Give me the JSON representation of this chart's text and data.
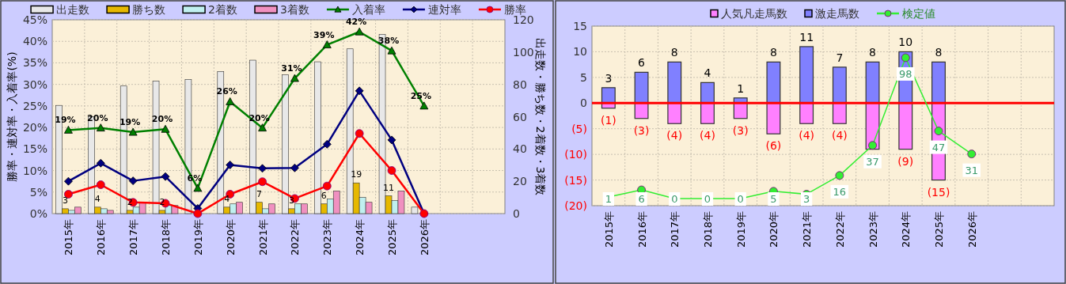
{
  "chart_data": [
    {
      "type": "bar",
      "categories": [
        "2015年",
        "2016年",
        "2017年",
        "2018年",
        "2019年",
        "2020年",
        "2021年",
        "2022年",
        "2023年",
        "2024年",
        "2025年",
        "2026年",
        null,
        null
      ],
      "ylabel": "勝率・連対率・入着率(%)",
      "y2label": "出走数・勝ち数・2着数・3着数",
      "ylim": [
        0,
        45
      ],
      "yticks": [
        {
          "value": 0,
          "label": "0%"
        },
        {
          "value": 5,
          "label": "5%"
        },
        {
          "value": 10,
          "label": "10%"
        },
        {
          "value": 15,
          "label": "15%"
        },
        {
          "value": 20,
          "label": "20%"
        },
        {
          "value": 25,
          "label": "25%"
        },
        {
          "value": 30,
          "label": "30%"
        },
        {
          "value": 35,
          "label": "35%"
        },
        {
          "value": 40,
          "label": "40%"
        },
        {
          "value": 45,
          "label": "45%"
        }
      ],
      "y2lim": [
        0,
        120
      ],
      "y2ticks": [
        0,
        20,
        40,
        60,
        80,
        100,
        120
      ],
      "grid": true,
      "legend": "top",
      "series": [
        {
          "name": "出走数",
          "color": "#e8e8e8",
          "axis": "y2",
          "values": [
            67,
            60,
            79,
            82,
            83,
            88,
            95,
            86,
            94,
            102,
            111,
            4,
            null,
            null
          ]
        },
        {
          "name": "勝ち数",
          "color": "#e6b800",
          "axis": "y2",
          "values": [
            3,
            4,
            2,
            2,
            0,
            4,
            7,
            3,
            6,
            19,
            11,
            0,
            null,
            null
          ],
          "value_labels": [
            "3",
            "4",
            "2",
            "2",
            null,
            "4",
            "7",
            "3",
            "6",
            "19",
            "11",
            null,
            null,
            null
          ]
        },
        {
          "name": "2着数",
          "color": "#c0f0f0",
          "axis": "y2",
          "values": [
            2,
            3,
            4,
            5,
            0,
            6,
            3,
            6,
            9,
            10,
            8,
            0,
            null,
            null
          ]
        },
        {
          "name": "3着数",
          "color": "#f090c0",
          "axis": "y2",
          "values": [
            4,
            2,
            7,
            5,
            0,
            7,
            6,
            6,
            14,
            7,
            14,
            0,
            null,
            null
          ]
        },
        {
          "name": "入着率",
          "type": "line",
          "marker": "triangle",
          "color": "#008000",
          "values": [
            19.4,
            19.9,
            18.9,
            19.6,
            5.9,
            26.0,
            19.9,
            31.4,
            39.2,
            42.2,
            37.8,
            25.0,
            null,
            null
          ],
          "value_labels": [
            "19%",
            "20%",
            "19%",
            "20%",
            "6%",
            "26%",
            "20%",
            "31%",
            "39%",
            "42%",
            "38%",
            "25%",
            null,
            null
          ]
        },
        {
          "name": "連対率",
          "type": "line",
          "marker": "diamond",
          "color": "#000080",
          "values": [
            7.5,
            11.7,
            7.6,
            8.6,
            1.2,
            11.3,
            10.5,
            10.6,
            16.1,
            28.5,
            17.1,
            0,
            null,
            null
          ]
        },
        {
          "name": "勝率",
          "type": "line",
          "marker": "circle",
          "color": "#ff0000",
          "values": [
            4.5,
            6.7,
            2.6,
            2.4,
            0,
            4.5,
            7.4,
            3.5,
            6.4,
            18.6,
            10.0,
            0,
            null,
            null
          ]
        }
      ]
    },
    {
      "type": "bar",
      "stacked": true,
      "categories": [
        "2015年",
        "2016年",
        "2017年",
        "2018年",
        "2019年",
        "2020年",
        "2021年",
        "2022年",
        "2023年",
        "2024年",
        "2025年",
        "2026年",
        null,
        null
      ],
      "ylim": [
        -20,
        15
      ],
      "yticks": [
        {
          "value": 15,
          "label": "15"
        },
        {
          "value": 10,
          "label": "10"
        },
        {
          "value": 5,
          "label": "5"
        },
        {
          "value": 0,
          "label": "0"
        },
        {
          "value": -5,
          "label": "(5)"
        },
        {
          "value": -10,
          "label": "(10)"
        },
        {
          "value": -15,
          "label": "(15)"
        },
        {
          "value": -20,
          "label": "(20)"
        }
      ],
      "y2lim": [
        -5,
        120
      ],
      "grid": true,
      "legend": "top",
      "ref_lines": [
        {
          "axis": "y",
          "value": 0,
          "color": "#ff0000"
        }
      ],
      "series": [
        {
          "name": "人気凡走馬数",
          "color": "#ff80ff",
          "values": [
            -1,
            -3,
            -4,
            -4,
            -3,
            -6,
            -4,
            -4,
            -9,
            -9,
            -15,
            null,
            null,
            null
          ],
          "value_labels": [
            "(1)",
            "(3)",
            "(4)",
            "(4)",
            "(3)",
            "(6)",
            "(4)",
            "(4)",
            null,
            "(9)",
            "(15)",
            null,
            null,
            null
          ]
        },
        {
          "name": "激走馬数",
          "color": "#8080ff",
          "values": [
            3,
            6,
            8,
            4,
            1,
            8,
            11,
            7,
            8,
            10,
            8,
            null,
            null,
            null
          ],
          "value_labels": [
            "3",
            "6",
            "8",
            "4",
            "1",
            "8",
            "11",
            "7",
            "8",
            "10",
            "8",
            null,
            null,
            null
          ]
        },
        {
          "name": "検定値",
          "type": "line",
          "axis": "y2",
          "marker": "circle",
          "color": "#33ee33",
          "values": [
            1,
            6,
            0,
            0,
            0,
            5,
            3,
            16,
            37,
            98,
            47,
            31,
            null,
            null
          ],
          "value_labels": [
            "1",
            "6",
            "0",
            "0",
            "0",
            "5",
            "3",
            "16",
            "37",
            "98",
            "47",
            "31",
            null,
            null
          ]
        }
      ]
    }
  ]
}
